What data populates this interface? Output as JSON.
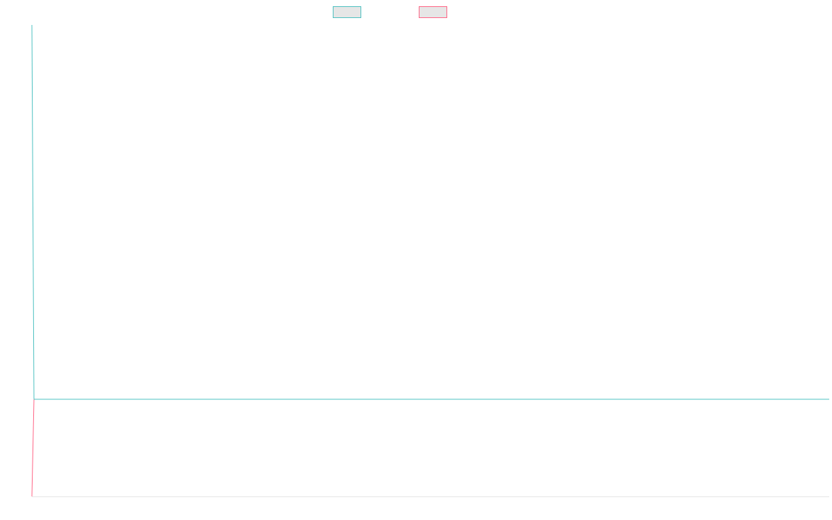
{
  "chart_data": {
    "type": "line",
    "title": "",
    "xlabel": "",
    "ylabel": "",
    "legend_position": "top",
    "grid": false,
    "x": [
      0,
      1
    ],
    "series": [
      {
        "name": "",
        "color": "#4bc0c0",
        "swatch_fill": "#e6e6e6",
        "values": [
          1,
          0.206
        ]
      },
      {
        "name": "",
        "color": "#ff6384",
        "swatch_fill": "#e6e6e6",
        "values": [
          0,
          0.206
        ]
      }
    ],
    "ylim": [
      0,
      1
    ]
  }
}
